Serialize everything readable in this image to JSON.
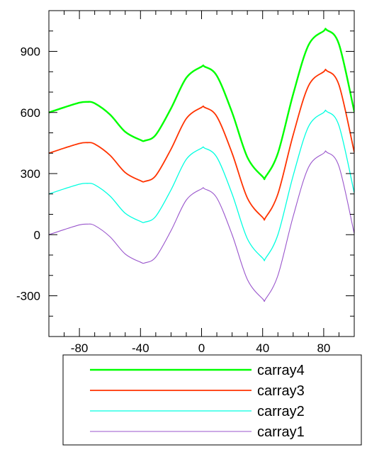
{
  "chart_data": {
    "type": "line",
    "title": "",
    "xlabel": "",
    "ylabel": "",
    "xlim": [
      -100,
      100
    ],
    "ylim": [
      -500,
      1100
    ],
    "x_ticks": [
      -80,
      -40,
      0,
      40,
      80
    ],
    "y_ticks": [
      -300,
      0,
      300,
      600,
      900
    ],
    "x_tick_labels": [
      "-80",
      "-40",
      "0",
      "40",
      "80"
    ],
    "y_tick_labels": [
      "-300",
      "0",
      "300",
      "600",
      "900"
    ],
    "grid": false,
    "legend_placement": "bottom, below plot",
    "x": [
      -100,
      -90,
      -80,
      -75,
      -70,
      -60,
      -50,
      -40,
      -37,
      -30,
      -20,
      -10,
      0,
      2,
      10,
      20,
      30,
      40,
      42,
      50,
      60,
      70,
      80,
      82,
      90,
      100
    ],
    "series": [
      {
        "name": "carray4",
        "color": "#00ff00",
        "width": 2.4,
        "values": [
          600,
          625,
          648,
          652,
          645,
          590,
          505,
          465,
          462,
          490,
          620,
          770,
          825,
          825,
          780,
          600,
          380,
          285,
          285,
          400,
          690,
          930,
          1000,
          1005,
          935,
          605
        ]
      },
      {
        "name": "carray3",
        "color": "#ff3300",
        "width": 1.8,
        "values": [
          400,
          425,
          448,
          452,
          445,
          390,
          305,
          265,
          262,
          290,
          420,
          570,
          625,
          625,
          580,
          400,
          180,
          85,
          85,
          200,
          490,
          730,
          800,
          805,
          735,
          405
        ]
      },
      {
        "name": "carray2",
        "color": "#00ffe0",
        "width": 1.3,
        "values": [
          200,
          225,
          248,
          252,
          245,
          190,
          105,
          65,
          62,
          90,
          220,
          370,
          425,
          425,
          380,
          200,
          -20,
          -115,
          -115,
          0,
          290,
          530,
          600,
          605,
          535,
          205
        ]
      },
      {
        "name": "carray1",
        "color": "#9955cc",
        "width": 1.1,
        "values": [
          0,
          25,
          48,
          52,
          45,
          -10,
          -95,
          -135,
          -138,
          -110,
          20,
          170,
          225,
          225,
          180,
          0,
          -220,
          -315,
          -315,
          -200,
          90,
          330,
          400,
          405,
          335,
          5
        ]
      }
    ],
    "legend_order": [
      "carray4",
      "carray3",
      "carray2",
      "carray1"
    ]
  }
}
